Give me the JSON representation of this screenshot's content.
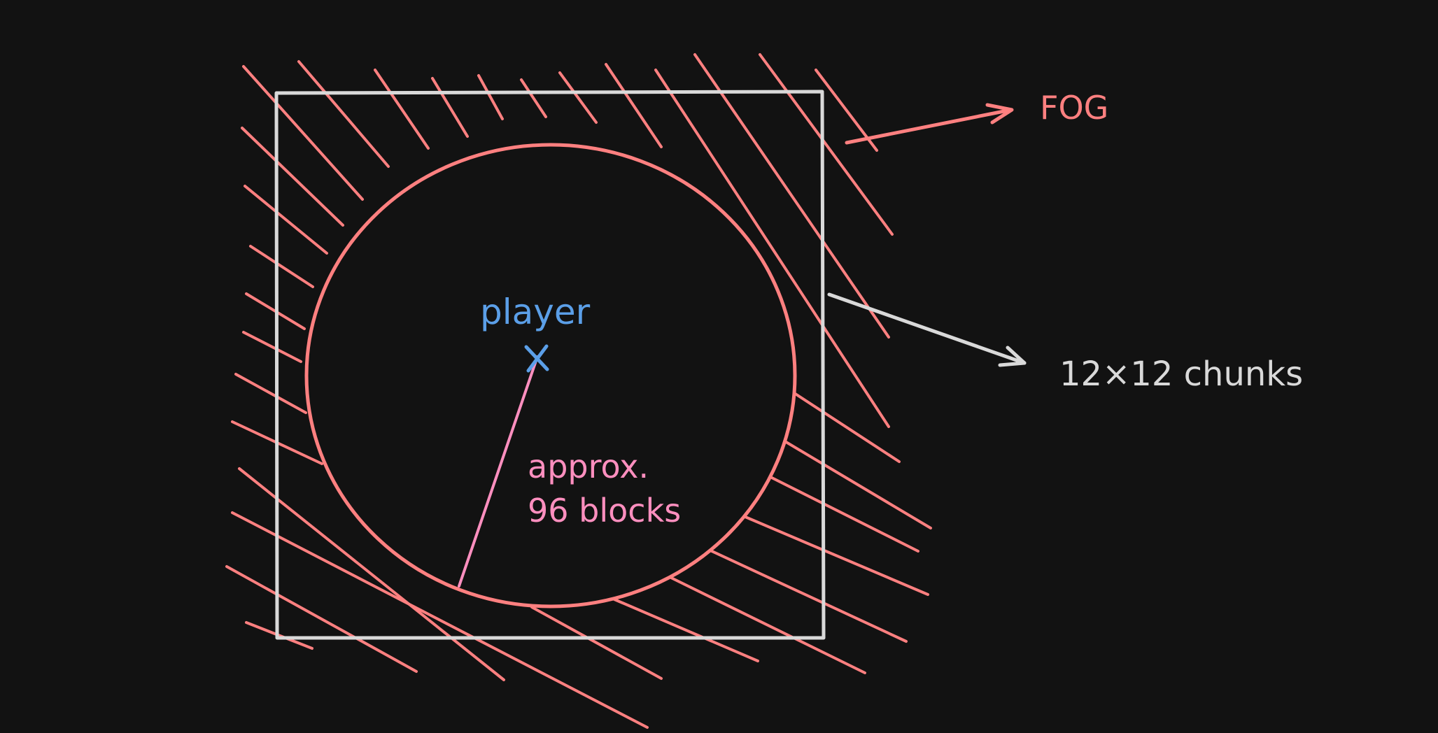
{
  "labels": {
    "fog": "FOG",
    "chunks": "12×12 chunks",
    "player": "player",
    "player_marker": "×",
    "radius_line1": "approx.",
    "radius_line2": "96 blocks"
  },
  "colors": {
    "background": "#121212",
    "fog": "#ff8080",
    "square": "#d9d9d9",
    "player": "#5b9fe8",
    "radius": "#ff8fbf"
  }
}
